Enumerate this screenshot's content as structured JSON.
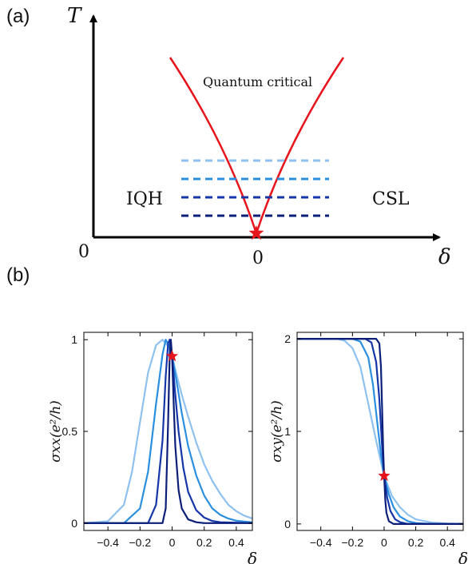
{
  "panel_a": {
    "label": "(a)",
    "y_axis_label": "T",
    "x_axis_label": "δ",
    "origin_label": "0",
    "center_tick_label": "0",
    "region_left": "IQH",
    "region_right": "CSL",
    "critical_label": "Quantum critical",
    "colors": {
      "boundary": "#e8141c",
      "star": "#e8141c",
      "lines": [
        "#8ec1f0",
        "#2b8fe0",
        "#1436a8",
        "#0c1f78"
      ]
    }
  },
  "panel_b": {
    "label": "(b)"
  },
  "chart_data": [
    {
      "type": "line",
      "title": "",
      "ylabel": "σxx(e²/h)",
      "xlabel": "δ",
      "xlim": [
        -0.55,
        0.5
      ],
      "ylim": [
        -0.04,
        1.04
      ],
      "x_ticks": [
        "-0.4",
        "-0.2",
        "0",
        "0.2",
        "0.4"
      ],
      "x_tick_values": [
        -0.4,
        -0.2,
        0,
        0.2,
        0.4
      ],
      "y_ticks": [
        "0",
        "0.5",
        "1"
      ],
      "y_tick_values": [
        0,
        0.5,
        1
      ],
      "marker": {
        "x": 0.0,
        "y": 0.91,
        "color": "#e8141c"
      },
      "series": [
        {
          "color": "#8ec1f0",
          "x": [
            -0.55,
            -0.4,
            -0.3,
            -0.25,
            -0.2,
            -0.15,
            -0.1,
            -0.06,
            -0.03,
            0,
            0.03,
            0.06,
            0.1,
            0.15,
            0.2,
            0.25,
            0.3,
            0.35,
            0.4,
            0.45,
            0.5
          ],
          "values": [
            0,
            0.01,
            0.1,
            0.28,
            0.55,
            0.82,
            0.97,
            1.0,
            0.97,
            0.91,
            0.8,
            0.7,
            0.58,
            0.44,
            0.32,
            0.23,
            0.16,
            0.1,
            0.065,
            0.04,
            0.025
          ]
        },
        {
          "color": "#2b8fe0",
          "x": [
            -0.55,
            -0.3,
            -0.2,
            -0.15,
            -0.1,
            -0.06,
            -0.04,
            -0.02,
            0,
            0.03,
            0.06,
            0.1,
            0.15,
            0.2,
            0.25,
            0.3,
            0.35,
            0.4,
            0.5
          ],
          "values": [
            0,
            0.0,
            0.08,
            0.28,
            0.65,
            0.92,
            1.0,
            0.97,
            0.91,
            0.76,
            0.6,
            0.42,
            0.26,
            0.15,
            0.08,
            0.045,
            0.025,
            0.013,
            0.004
          ]
        },
        {
          "color": "#1436a8",
          "x": [
            -0.55,
            -0.15,
            -0.1,
            -0.06,
            -0.04,
            -0.025,
            -0.015,
            0,
            0.02,
            0.04,
            0.07,
            0.1,
            0.15,
            0.2,
            0.25,
            0.3,
            0.5
          ],
          "values": [
            0,
            0.0,
            0.1,
            0.45,
            0.8,
            0.98,
            1.0,
            0.91,
            0.7,
            0.5,
            0.3,
            0.17,
            0.07,
            0.03,
            0.012,
            0.005,
            0.0
          ]
        },
        {
          "color": "#0c1f78",
          "x": [
            -0.55,
            -0.06,
            -0.04,
            -0.025,
            -0.015,
            -0.008,
            0,
            0.01,
            0.02,
            0.04,
            0.06,
            0.1,
            0.15,
            0.2,
            0.5
          ],
          "values": [
            0,
            0.0,
            0.08,
            0.55,
            0.92,
            1.0,
            0.91,
            0.65,
            0.42,
            0.18,
            0.08,
            0.02,
            0.005,
            0.0,
            0.0
          ]
        }
      ]
    },
    {
      "type": "line",
      "title": "",
      "ylabel": "σxy(e²/h)",
      "xlabel": "δ",
      "xlim": [
        -0.55,
        0.5
      ],
      "ylim": [
        -0.07,
        2.07
      ],
      "x_ticks": [
        "-0.4",
        "-0.2",
        "0",
        "0.2",
        "0.4"
      ],
      "x_tick_values": [
        -0.4,
        -0.2,
        0,
        0.2,
        0.4
      ],
      "y_ticks": [
        "0",
        "1",
        "2"
      ],
      "y_tick_values": [
        0,
        1,
        2
      ],
      "marker": {
        "x": 0.0,
        "y": 0.52,
        "color": "#e8141c"
      },
      "series": [
        {
          "color": "#8ec1f0",
          "x": [
            -0.55,
            -0.4,
            -0.3,
            -0.25,
            -0.2,
            -0.15,
            -0.1,
            -0.05,
            0,
            0.05,
            0.1,
            0.15,
            0.2,
            0.3,
            0.4,
            0.5
          ],
          "values": [
            2.0,
            2.0,
            2.0,
            1.98,
            1.9,
            1.7,
            1.3,
            0.9,
            0.52,
            0.3,
            0.18,
            0.1,
            0.05,
            0.015,
            0.005,
            0.0
          ]
        },
        {
          "color": "#2b8fe0",
          "x": [
            -0.55,
            -0.2,
            -0.15,
            -0.1,
            -0.07,
            -0.04,
            -0.02,
            0,
            0.03,
            0.06,
            0.1,
            0.15,
            0.2,
            0.3,
            0.5
          ],
          "values": [
            2.0,
            2.0,
            1.97,
            1.8,
            1.5,
            1.05,
            0.75,
            0.52,
            0.32,
            0.18,
            0.08,
            0.03,
            0.01,
            0.0,
            0.0
          ]
        },
        {
          "color": "#1436a8",
          "x": [
            -0.55,
            -0.12,
            -0.08,
            -0.05,
            -0.03,
            -0.015,
            0,
            0.02,
            0.04,
            0.07,
            0.1,
            0.15,
            0.5
          ],
          "values": [
            2.0,
            2.0,
            1.96,
            1.75,
            1.35,
            0.9,
            0.52,
            0.28,
            0.14,
            0.05,
            0.02,
            0.0,
            0.0
          ]
        },
        {
          "color": "#0c1f78",
          "x": [
            -0.55,
            -0.05,
            -0.03,
            -0.02,
            -0.012,
            -0.006,
            0,
            0.008,
            0.015,
            0.03,
            0.06,
            0.5
          ],
          "values": [
            2.0,
            2.0,
            1.95,
            1.7,
            1.2,
            0.8,
            0.52,
            0.25,
            0.12,
            0.03,
            0.0,
            0.0
          ]
        }
      ]
    }
  ]
}
